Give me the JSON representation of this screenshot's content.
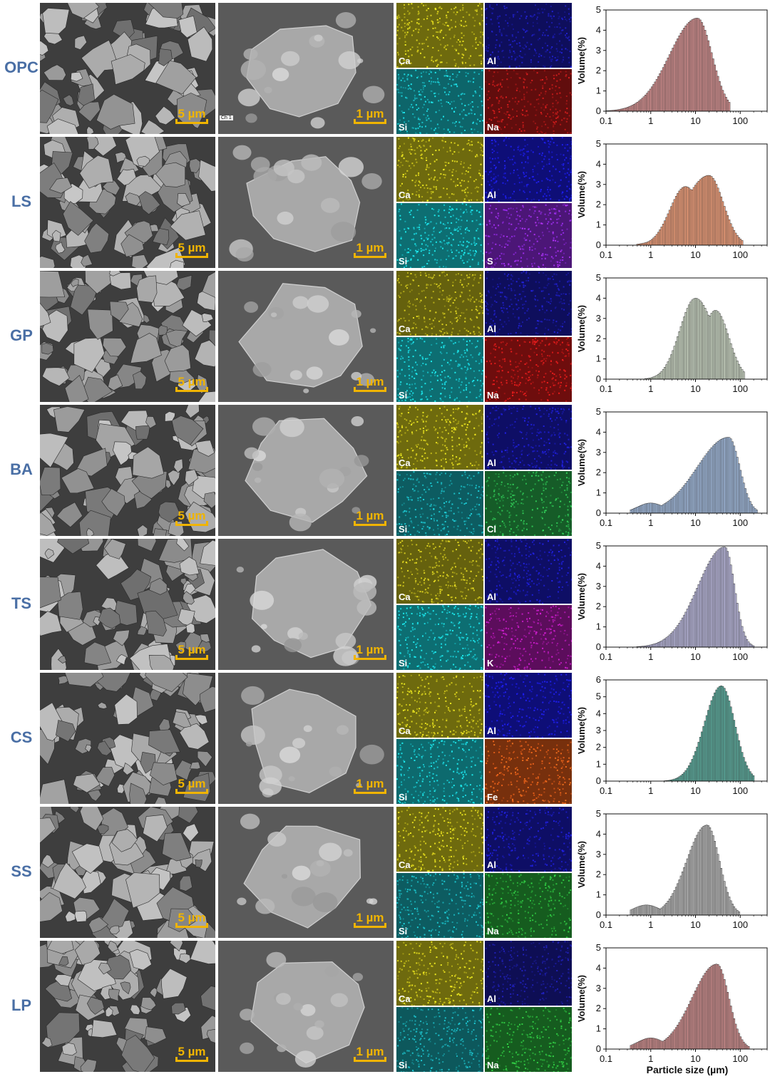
{
  "figure": {
    "x_axis_label": "Particle size (µm)",
    "y_axis_label": "Volume(%)",
    "x_ticks": [
      "0.1",
      "1",
      "10",
      "100"
    ],
    "scale_bar_low": "5 µm",
    "scale_bar_high": "1 µm"
  },
  "samples": [
    {
      "label": "OPC",
      "eds": [
        {
          "el": "Ca",
          "color": "#c8c01a"
        },
        {
          "el": "Al",
          "color": "#1a1aa8"
        },
        {
          "el": "Si",
          "color": "#18b8c0"
        },
        {
          "el": "Na",
          "color": "#b01818"
        }
      ],
      "sem_tags": [
        "Ch 1"
      ]
    },
    {
      "label": "LS",
      "eds": [
        {
          "el": "Ca",
          "color": "#c8c01a"
        },
        {
          "el": "Al",
          "color": "#1a1ad8"
        },
        {
          "el": "Si",
          "color": "#18c8d0"
        },
        {
          "el": "S",
          "color": "#8a28d8"
        }
      ],
      "sem_tags": []
    },
    {
      "label": "GP",
      "eds": [
        {
          "el": "Ca",
          "color": "#b8b01a"
        },
        {
          "el": "Al",
          "color": "#1a1aa8"
        },
        {
          "el": "Si",
          "color": "#18c8d0"
        },
        {
          "el": "Na",
          "color": "#c81818"
        }
      ],
      "sem_tags": []
    },
    {
      "label": "BA",
      "eds": [
        {
          "el": "Ca",
          "color": "#c8c01a"
        },
        {
          "el": "Al",
          "color": "#1a1ab8"
        },
        {
          "el": "Si",
          "color": "#18a8b0"
        },
        {
          "el": "Cl",
          "color": "#28a848"
        }
      ],
      "sem_tags": []
    },
    {
      "label": "TS",
      "eds": [
        {
          "el": "Ca",
          "color": "#b8b01a"
        },
        {
          "el": "Al",
          "color": "#1a1ab8"
        },
        {
          "el": "Si",
          "color": "#18c8d0"
        },
        {
          "el": "K",
          "color": "#a818a8"
        }
      ],
      "sem_tags": []
    },
    {
      "label": "CS",
      "eds": [
        {
          "el": "Ca",
          "color": "#c8c01a"
        },
        {
          "el": "Al",
          "color": "#1a1ad8"
        },
        {
          "el": "Si",
          "color": "#18c0c8"
        },
        {
          "el": "Fe",
          "color": "#d85818"
        }
      ],
      "sem_tags": []
    },
    {
      "label": "SS",
      "eds": [
        {
          "el": "Ca",
          "color": "#c8c01a"
        },
        {
          "el": "Al",
          "color": "#1a1ab8"
        },
        {
          "el": "Si",
          "color": "#18a8b0"
        },
        {
          "el": "Na",
          "color": "#28a838"
        }
      ],
      "sem_tags": []
    },
    {
      "label": "LP",
      "eds": [
        {
          "el": "Ca",
          "color": "#c8c01a"
        },
        {
          "el": "Al",
          "color": "#1a1a98"
        },
        {
          "el": "Si",
          "color": "#18a0a8"
        },
        {
          "el": "Na",
          "color": "#28a838"
        }
      ],
      "sem_tags": []
    }
  ],
  "chart_data": [
    {
      "type": "histogram",
      "sample": "OPC",
      "xscale": "log",
      "xlim": [
        0.1,
        400
      ],
      "ylim": [
        0,
        5
      ],
      "yticks": [
        0,
        1,
        2,
        3,
        4,
        5
      ],
      "fill": "#d08d8d",
      "peak_x": 11,
      "peak_y": 4.6,
      "x_min": 0.1,
      "x_max": 60,
      "sigma_left": 0.62,
      "sigma_right": 0.33,
      "shoulder": null
    },
    {
      "type": "histogram",
      "sample": "LS",
      "xscale": "log",
      "xlim": [
        0.1,
        400
      ],
      "ylim": [
        0,
        5
      ],
      "yticks": [
        0,
        1,
        2,
        3,
        4,
        5
      ],
      "fill": "#ec9c78",
      "peak_x": 20,
      "peak_y": 3.45,
      "x_min": 0.5,
      "x_max": 120,
      "sigma_left": 0.55,
      "sigma_right": 0.32,
      "shoulder": {
        "x": 6,
        "y": 2.9,
        "sigma": 0.35
      }
    },
    {
      "type": "histogram",
      "sample": "GP",
      "xscale": "log",
      "xlim": [
        0.1,
        400
      ],
      "ylim": [
        0,
        5
      ],
      "yticks": [
        0,
        1,
        2,
        3,
        4,
        5
      ],
      "fill": "#c7d2c0",
      "peak_x": 10,
      "peak_y": 4.0,
      "x_min": 0.5,
      "x_max": 130,
      "sigma_left": 0.35,
      "sigma_right": 0.42,
      "shoulder": {
        "x": 28,
        "y": 3.4,
        "sigma": 0.3
      }
    },
    {
      "type": "histogram",
      "sample": "BA",
      "xscale": "log",
      "xlim": [
        0.1,
        400
      ],
      "ylim": [
        0,
        5
      ],
      "yticks": [
        0,
        1,
        2,
        3,
        4,
        5
      ],
      "fill": "#9eb6d8",
      "peak_x": 55,
      "peak_y": 3.75,
      "x_min": 0.35,
      "x_max": 250,
      "sigma_left": 0.7,
      "sigma_right": 0.25,
      "shoulder": {
        "x": 1.0,
        "y": 0.5,
        "sigma": 0.3
      }
    },
    {
      "type": "histogram",
      "sample": "TS",
      "xscale": "log",
      "xlim": [
        0.1,
        400
      ],
      "ylim": [
        0,
        5
      ],
      "yticks": [
        0,
        1,
        2,
        3,
        4,
        5
      ],
      "fill": "#b6b4d8",
      "peak_x": 45,
      "peak_y": 4.95,
      "x_min": 0.5,
      "x_max": 200,
      "sigma_left": 0.6,
      "sigma_right": 0.22,
      "shoulder": null
    },
    {
      "type": "histogram",
      "sample": "CS",
      "xscale": "log",
      "xlim": [
        0.1,
        400
      ],
      "ylim": [
        0,
        6
      ],
      "yticks": [
        0,
        1,
        2,
        3,
        4,
        5,
        6
      ],
      "fill": "#5aa89a",
      "peak_x": 38,
      "peak_y": 5.65,
      "x_min": 1.8,
      "x_max": 200,
      "sigma_left": 0.38,
      "sigma_right": 0.3,
      "shoulder": null
    },
    {
      "type": "histogram",
      "sample": "SS",
      "xscale": "log",
      "xlim": [
        0.1,
        400
      ],
      "ylim": [
        0,
        5
      ],
      "yticks": [
        0,
        1,
        2,
        3,
        4,
        5
      ],
      "fill": "#b4b4b4",
      "peak_x": 18,
      "peak_y": 4.45,
      "x_min": 0.35,
      "x_max": 100,
      "sigma_left": 0.45,
      "sigma_right": 0.28,
      "shoulder": {
        "x": 0.8,
        "y": 0.5,
        "sigma": 0.3
      }
    },
    {
      "type": "histogram",
      "sample": "LP",
      "xscale": "log",
      "xlim": [
        0.1,
        400
      ],
      "ylim": [
        0,
        5
      ],
      "yticks": [
        0,
        1,
        2,
        3,
        4,
        5
      ],
      "fill": "#c98a8a",
      "peak_x": 30,
      "peak_y": 4.2,
      "x_min": 0.35,
      "x_max": 160,
      "sigma_left": 0.55,
      "sigma_right": 0.27,
      "shoulder": {
        "x": 1.0,
        "y": 0.55,
        "sigma": 0.3
      }
    }
  ]
}
